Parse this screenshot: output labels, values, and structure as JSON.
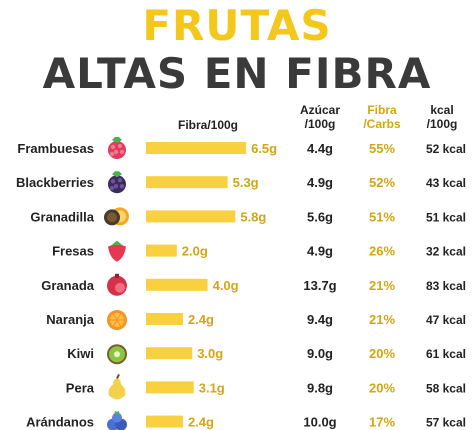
{
  "title": {
    "line1": "FRUTAS",
    "line2": "ALTAS EN FIBRA"
  },
  "colors": {
    "accent": "#f4c81a",
    "fibra_bar": "#f9d03f",
    "fibra_value": "#d4a514",
    "title_dark": "#3a3a3a",
    "text": "#222222"
  },
  "headers": {
    "fibra": "Fibra/100g",
    "azucar": "Azúcar\n/100g",
    "fibra_carbs": "Fibra\n/Carbs",
    "kcal": "kcal\n/100g"
  },
  "chart_data": {
    "type": "table",
    "categories": [
      "Frambuesas",
      "Blackberries",
      "Granadilla",
      "Fresas",
      "Granada",
      "Naranja",
      "Kiwi",
      "Pera",
      "Arándanos"
    ],
    "series": [
      {
        "name": "Fibra/100g",
        "values": [
          6.5,
          5.3,
          5.8,
          2.0,
          4.0,
          2.4,
          3.0,
          3.1,
          2.4
        ],
        "labels": [
          "6.5g",
          "5.3g",
          "5.8g",
          "2.0g",
          "4.0g",
          "2.4g",
          "3.0g",
          "3.1g",
          "2.4g"
        ]
      },
      {
        "name": "Azúcar /100g",
        "values": [
          4.4,
          4.9,
          5.6,
          4.9,
          13.7,
          9.4,
          9.0,
          9.8,
          10.0
        ],
        "labels": [
          "4.4g",
          "4.9g",
          "5.6g",
          "4.9g",
          "13.7g",
          "9.4g",
          "9.0g",
          "9.8g",
          "10.0g"
        ]
      },
      {
        "name": "Fibra /Carbs",
        "values": [
          55,
          52,
          51,
          26,
          21,
          21,
          20,
          20,
          17
        ],
        "labels": [
          "55%",
          "52%",
          "51%",
          "26%",
          "21%",
          "21%",
          "20%",
          "20%",
          "17%"
        ]
      },
      {
        "name": "kcal /100g",
        "values": [
          52,
          43,
          51,
          32,
          83,
          47,
          61,
          58,
          57
        ],
        "labels": [
          "52 kcal",
          "43 kcal",
          "51 kcal",
          "32 kcal",
          "83 kcal",
          "47 kcal",
          "61 kcal",
          "58 kcal",
          "57 kcal"
        ]
      }
    ],
    "icons": [
      "raspberry-icon",
      "blackberry-icon",
      "granadilla-icon",
      "strawberry-icon",
      "pomegranate-icon",
      "orange-icon",
      "kiwi-icon",
      "pear-icon",
      "blueberry-icon"
    ]
  }
}
